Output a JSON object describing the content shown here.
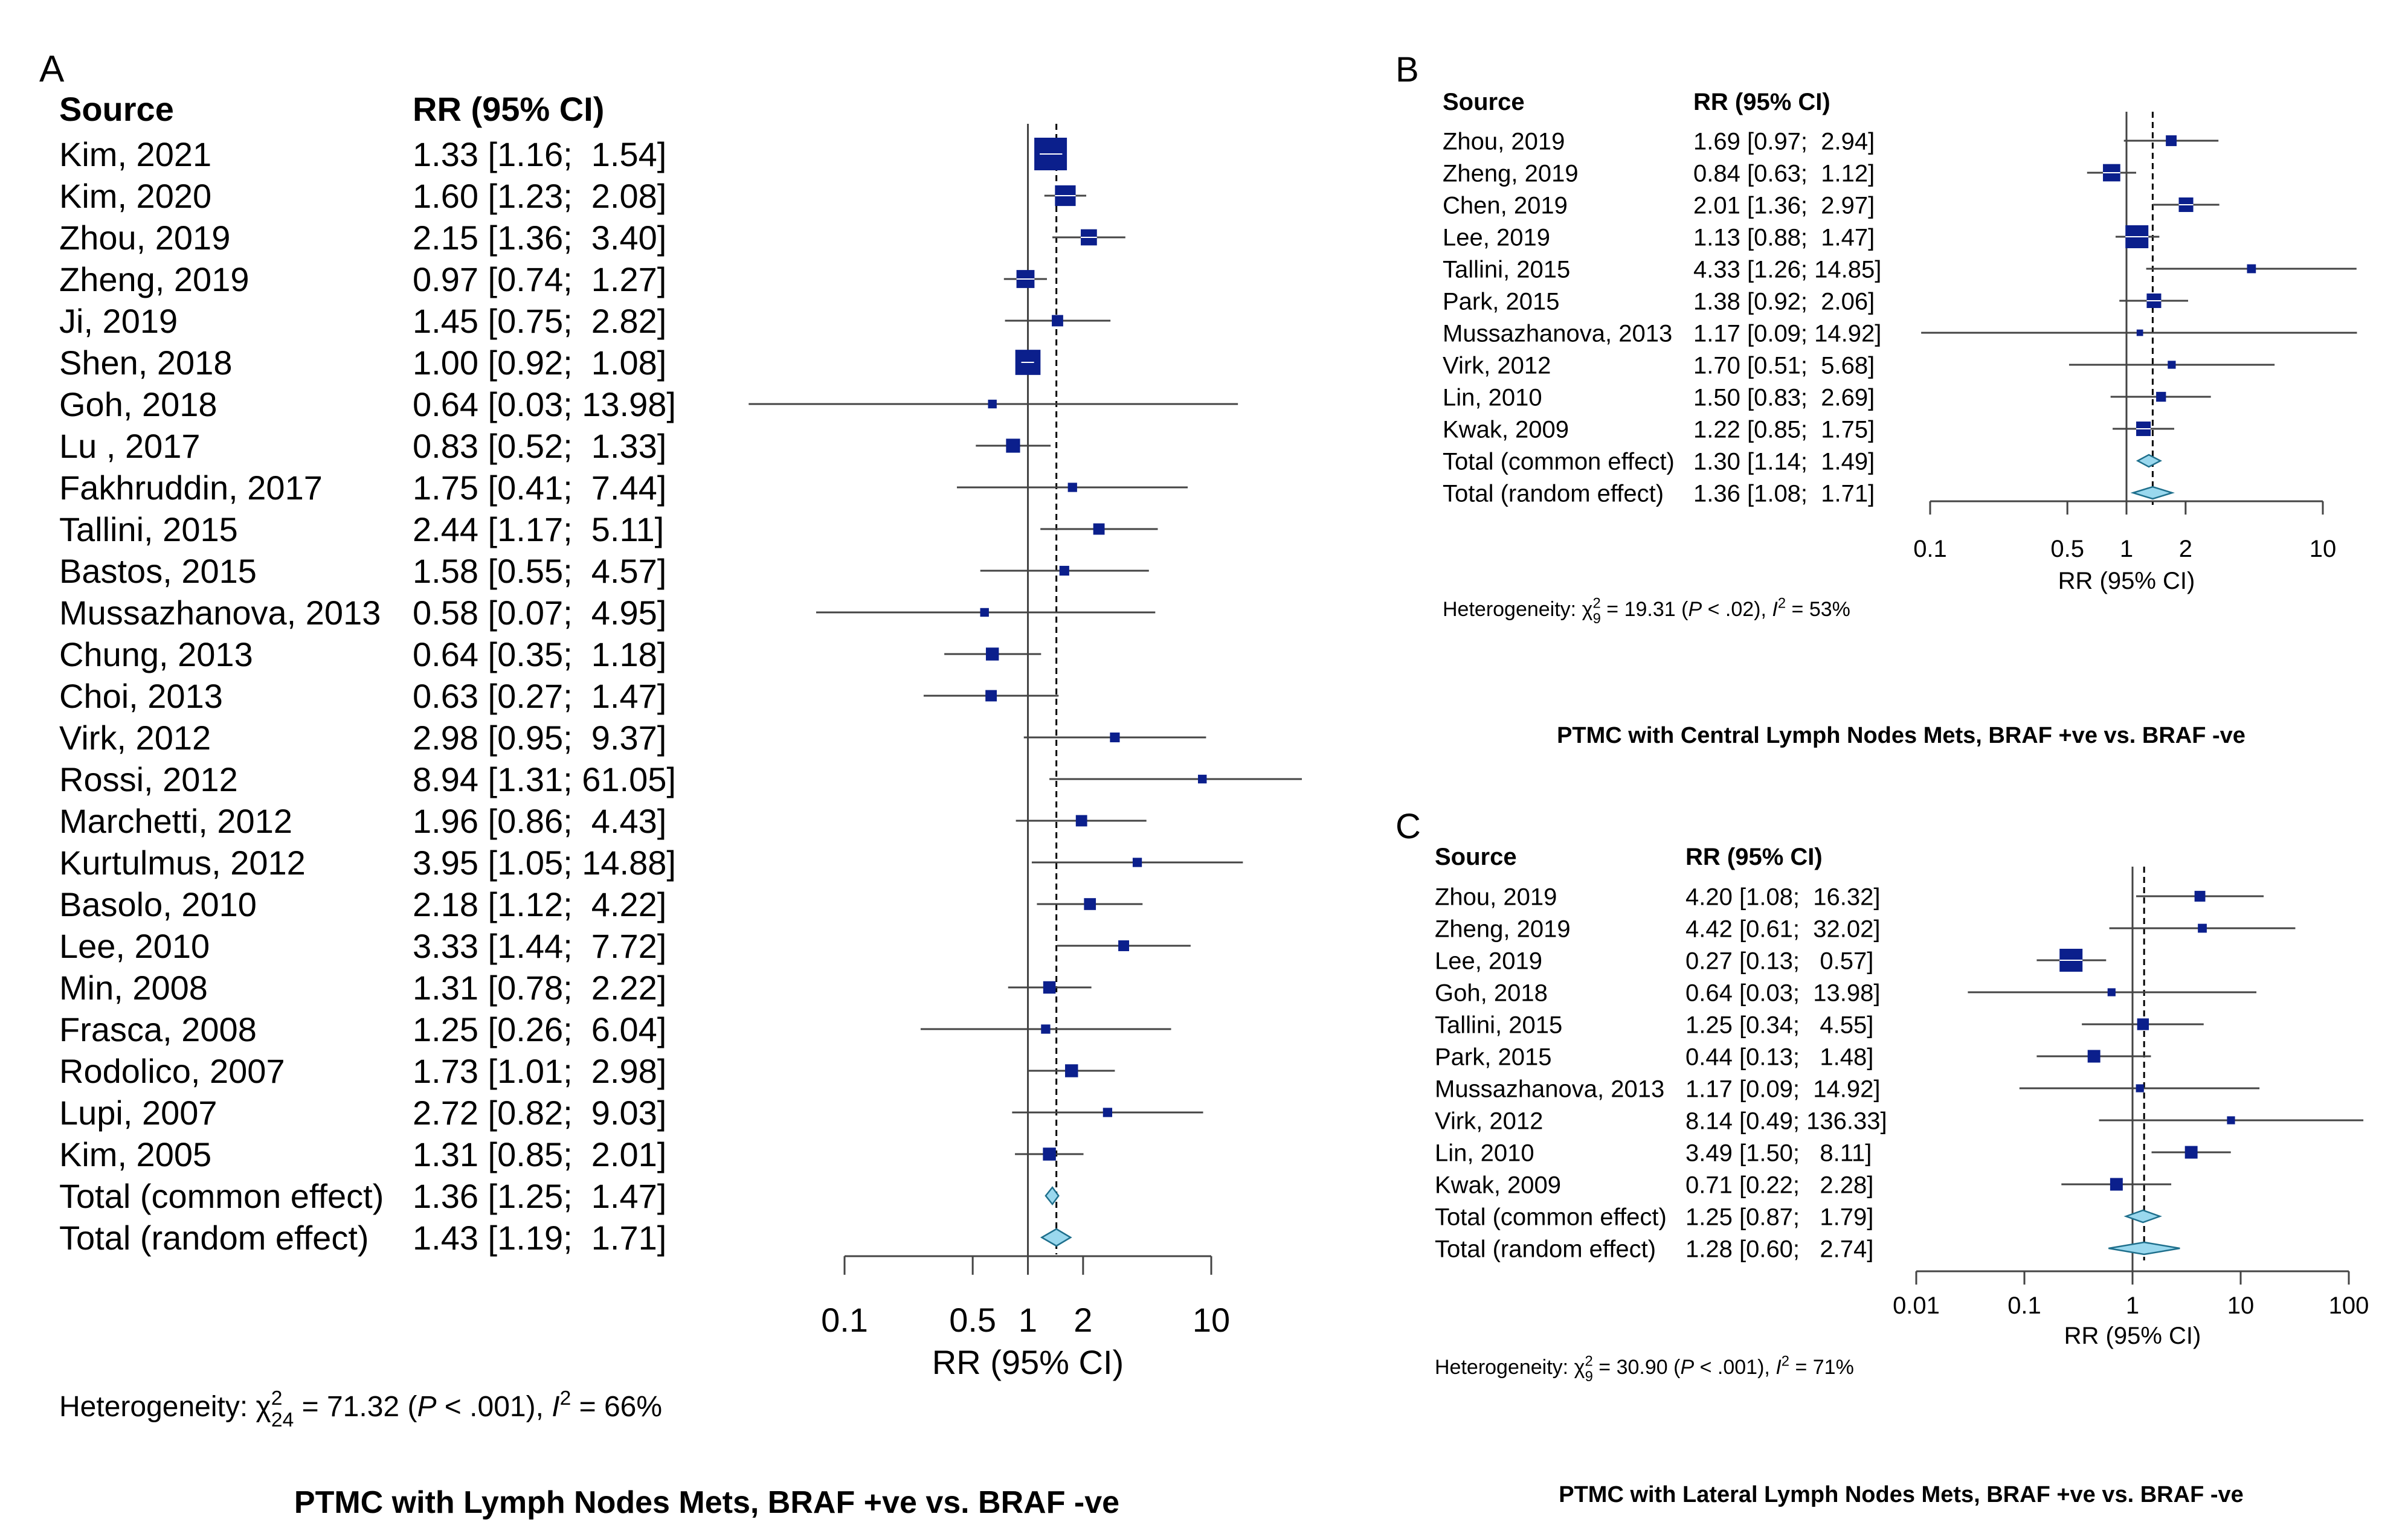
{
  "colors": {
    "square": "#0b1f8c",
    "diamond_fill": "#9ad8ee",
    "diamond_stroke": "#1e6f8c",
    "ci_line": "#444444",
    "axis": "#444444"
  },
  "chart_data": [
    {
      "type": "forest",
      "panel_label": "A",
      "col_source": "Source",
      "col_estimate": "RR (95% CI)",
      "xlabel": "RR (95% CI)",
      "scale": "log",
      "ticks": [
        {
          "v": 0.1,
          "label": "0.1"
        },
        {
          "v": 0.5,
          "label": "0.5"
        },
        {
          "v": 1,
          "label": "1"
        },
        {
          "v": 2,
          "label": "2"
        },
        {
          "v": 10,
          "label": "10"
        }
      ],
      "studies": [
        {
          "source": "Kim, 2021",
          "ci_text": "1.33 [1.16;  1.54]",
          "rr": 1.33,
          "lo": 1.16,
          "hi": 1.54,
          "weight": 1.0
        },
        {
          "source": "Kim, 2020",
          "ci_text": "1.60 [1.23;  2.08]",
          "rr": 1.6,
          "lo": 1.23,
          "hi": 2.08,
          "weight": 0.55
        },
        {
          "source": "Zhou, 2019",
          "ci_text": "2.15 [1.36;  3.40]",
          "rr": 2.15,
          "lo": 1.36,
          "hi": 3.4,
          "weight": 0.38
        },
        {
          "source": "Zheng, 2019",
          "ci_text": "0.97 [0.74;  1.27]",
          "rr": 0.97,
          "lo": 0.74,
          "hi": 1.27,
          "weight": 0.45
        },
        {
          "source": "Ji, 2019",
          "ci_text": "1.45 [0.75;  2.82]",
          "rr": 1.45,
          "lo": 0.75,
          "hi": 2.82,
          "weight": 0.2
        },
        {
          "source": "Shen, 2018",
          "ci_text": "1.00 [0.92;  1.08]",
          "rr": 1.0,
          "lo": 0.92,
          "hi": 1.08,
          "weight": 0.72
        },
        {
          "source": "Goh, 2018",
          "ci_text": "0.64 [0.03; 13.98]",
          "rr": 0.64,
          "lo": 0.03,
          "hi": 13.98,
          "weight": 0.1
        },
        {
          "source": "Lu , 2017",
          "ci_text": "0.83 [0.52;  1.33]",
          "rr": 0.83,
          "lo": 0.52,
          "hi": 1.33,
          "weight": 0.3
        },
        {
          "source": "Fakhruddin, 2017",
          "ci_text": "1.75 [0.41;  7.44]",
          "rr": 1.75,
          "lo": 0.41,
          "hi": 7.44,
          "weight": 0.12
        },
        {
          "source": "Tallini, 2015",
          "ci_text": "2.44 [1.17;  5.11]",
          "rr": 2.44,
          "lo": 1.17,
          "hi": 5.11,
          "weight": 0.2
        },
        {
          "source": "Bastos, 2015",
          "ci_text": "1.58 [0.55;  4.57]",
          "rr": 1.58,
          "lo": 0.55,
          "hi": 4.57,
          "weight": 0.14
        },
        {
          "source": "Mussazhanova, 2013",
          "ci_text": "0.58 [0.07;  4.95]",
          "rr": 0.58,
          "lo": 0.07,
          "hi": 4.95,
          "weight": 0.1
        },
        {
          "source": "Chung, 2013",
          "ci_text": "0.64 [0.35;  1.18]",
          "rr": 0.64,
          "lo": 0.35,
          "hi": 1.18,
          "weight": 0.26
        },
        {
          "source": "Choi, 2013",
          "ci_text": "0.63 [0.27;  1.47]",
          "rr": 0.63,
          "lo": 0.27,
          "hi": 1.47,
          "weight": 0.2
        },
        {
          "source": "Virk, 2012",
          "ci_text": "2.98 [0.95;  9.37]",
          "rr": 2.98,
          "lo": 0.95,
          "hi": 9.37,
          "weight": 0.14
        },
        {
          "source": "Rossi, 2012",
          "ci_text": "8.94 [1.31; 61.05]",
          "rr": 8.94,
          "lo": 1.31,
          "hi": 61.05,
          "weight": 0.1
        },
        {
          "source": "Marchetti, 2012",
          "ci_text": "1.96 [0.86;  4.43]",
          "rr": 1.96,
          "lo": 0.86,
          "hi": 4.43,
          "weight": 0.2
        },
        {
          "source": "Kurtulmus, 2012",
          "ci_text": "3.95 [1.05; 14.88]",
          "rr": 3.95,
          "lo": 1.05,
          "hi": 14.88,
          "weight": 0.12
        },
        {
          "source": "Basolo, 2010",
          "ci_text": "2.18 [1.12;  4.22]",
          "rr": 2.18,
          "lo": 1.12,
          "hi": 4.22,
          "weight": 0.22
        },
        {
          "source": "Lee, 2010",
          "ci_text": "3.33 [1.44;  7.72]",
          "rr": 3.33,
          "lo": 1.44,
          "hi": 7.72,
          "weight": 0.18
        },
        {
          "source": "Min, 2008",
          "ci_text": "1.31 [0.78;  2.22]",
          "rr": 1.31,
          "lo": 0.78,
          "hi": 2.22,
          "weight": 0.24
        },
        {
          "source": "Frasca, 2008",
          "ci_text": "1.25 [0.26;  6.04]",
          "rr": 1.25,
          "lo": 0.26,
          "hi": 6.04,
          "weight": 0.12
        },
        {
          "source": "Rodolico, 2007",
          "ci_text": "1.73 [1.01;  2.98]",
          "rr": 1.73,
          "lo": 1.01,
          "hi": 2.98,
          "weight": 0.26
        },
        {
          "source": "Lupi, 2007",
          "ci_text": "2.72 [0.82;  9.03]",
          "rr": 2.72,
          "lo": 0.82,
          "hi": 9.03,
          "weight": 0.12
        },
        {
          "source": "Kim, 2005",
          "ci_text": "1.31 [0.85;  2.01]",
          "rr": 1.31,
          "lo": 0.85,
          "hi": 2.01,
          "weight": 0.26
        }
      ],
      "totals": [
        {
          "source": "Total (common effect)",
          "ci_text": "1.36 [1.25;  1.47]",
          "rr": 1.36,
          "lo": 1.25,
          "hi": 1.47
        },
        {
          "source": "Total (random effect)",
          "ci_text": "1.43 [1.19;  1.71]",
          "rr": 1.43,
          "lo": 1.19,
          "hi": 1.71
        }
      ],
      "heterogeneity": {
        "chi_sub": "24",
        "chi_value": "71.32",
        "p_value": ".001",
        "i2": "66%"
      },
      "caption": "PTMC with Lymph Nodes Mets, BRAF +ve vs. BRAF -ve"
    },
    {
      "type": "forest",
      "panel_label": "B",
      "col_source": "Source",
      "col_estimate": "RR (95% CI)",
      "xlabel": "RR (95% CI)",
      "scale": "log",
      "ticks": [
        {
          "v": 0.1,
          "label": "0.1"
        },
        {
          "v": 0.5,
          "label": "0.5"
        },
        {
          "v": 1,
          "label": "1"
        },
        {
          "v": 2,
          "label": "2"
        },
        {
          "v": 10,
          "label": "10"
        }
      ],
      "studies": [
        {
          "source": "Zhou, 2019",
          "ci_text": "1.69 [0.97;  2.94]",
          "rr": 1.69,
          "lo": 0.97,
          "hi": 2.94,
          "weight": 0.35
        },
        {
          "source": "Zheng, 2019",
          "ci_text": "0.84 [0.63;  1.12]",
          "rr": 0.84,
          "lo": 0.63,
          "hi": 1.12,
          "weight": 0.7
        },
        {
          "source": "Chen, 2019",
          "ci_text": "2.01 [1.36;  2.97]",
          "rr": 2.01,
          "lo": 1.36,
          "hi": 2.97,
          "weight": 0.55
        },
        {
          "source": "Lee, 2019",
          "ci_text": "1.13 [0.88;  1.47]",
          "rr": 1.13,
          "lo": 0.88,
          "hi": 1.47,
          "weight": 1.0
        },
        {
          "source": "Tallini, 2015",
          "ci_text": "4.33 [1.26; 14.85]",
          "rr": 4.33,
          "lo": 1.26,
          "hi": 14.85,
          "weight": 0.25
        },
        {
          "source": "Park, 2015",
          "ci_text": "1.38 [0.92;  2.06]",
          "rr": 1.38,
          "lo": 0.92,
          "hi": 2.06,
          "weight": 0.55
        },
        {
          "source": "Mussazhanova, 2013",
          "ci_text": "1.17 [0.09; 14.92]",
          "rr": 1.17,
          "lo": 0.09,
          "hi": 14.92,
          "weight": 0.12
        },
        {
          "source": "Virk, 2012",
          "ci_text": "1.70 [0.51;  5.68]",
          "rr": 1.7,
          "lo": 0.51,
          "hi": 5.68,
          "weight": 0.2
        },
        {
          "source": "Lin, 2010",
          "ci_text": "1.50 [0.83;  2.69]",
          "rr": 1.5,
          "lo": 0.83,
          "hi": 2.69,
          "weight": 0.3
        },
        {
          "source": "Kwak, 2009",
          "ci_text": "1.22 [0.85;  1.75]",
          "rr": 1.22,
          "lo": 0.85,
          "hi": 1.75,
          "weight": 0.55
        }
      ],
      "totals": [
        {
          "source": "Total (common effect)",
          "ci_text": "1.30 [1.14;  1.49]",
          "rr": 1.3,
          "lo": 1.14,
          "hi": 1.49
        },
        {
          "source": "Total (random effect)",
          "ci_text": "1.36 [1.08;  1.71]",
          "rr": 1.36,
          "lo": 1.08,
          "hi": 1.71
        }
      ],
      "heterogeneity": {
        "chi_sub": "9",
        "chi_value": "19.31",
        "p_value": ".02",
        "i2": "53%"
      },
      "caption": "PTMC with Central Lymph Nodes Mets, BRAF +ve vs. BRAF -ve"
    },
    {
      "type": "forest",
      "panel_label": "C",
      "col_source": "Source",
      "col_estimate": "RR (95% CI)",
      "xlabel": "RR (95% CI)",
      "scale": "log",
      "ticks": [
        {
          "v": 0.01,
          "label": "0.01"
        },
        {
          "v": 0.1,
          "label": "0.1"
        },
        {
          "v": 1,
          "label": "1"
        },
        {
          "v": 10,
          "label": "10"
        },
        {
          "v": 100,
          "label": "100"
        }
      ],
      "studies": [
        {
          "source": "Zhou, 2019",
          "ci_text": "4.20 [1.08;  16.32]",
          "rr": 4.2,
          "lo": 1.08,
          "hi": 16.32,
          "weight": 0.35
        },
        {
          "source": "Zheng, 2019",
          "ci_text": "4.42 [0.61;  32.02]",
          "rr": 4.42,
          "lo": 0.61,
          "hi": 32.02,
          "weight": 0.25
        },
        {
          "source": "Lee, 2019",
          "ci_text": "0.27 [0.13;   0.57]",
          "rr": 0.27,
          "lo": 0.13,
          "hi": 0.57,
          "weight": 1.0
        },
        {
          "source": "Goh, 2018",
          "ci_text": "0.64 [0.03;  13.98]",
          "rr": 0.64,
          "lo": 0.03,
          "hi": 13.98,
          "weight": 0.2
        },
        {
          "source": "Tallini, 2015",
          "ci_text": "1.25 [0.34;   4.55]",
          "rr": 1.25,
          "lo": 0.34,
          "hi": 4.55,
          "weight": 0.4
        },
        {
          "source": "Park, 2015",
          "ci_text": "0.44 [0.13;   1.48]",
          "rr": 0.44,
          "lo": 0.13,
          "hi": 1.48,
          "weight": 0.45
        },
        {
          "source": "Mussazhanova, 2013",
          "ci_text": "1.17 [0.09;  14.92]",
          "rr": 1.17,
          "lo": 0.09,
          "hi": 14.92,
          "weight": 0.2
        },
        {
          "source": "Virk, 2012",
          "ci_text": "8.14 [0.49; 136.33]",
          "rr": 8.14,
          "lo": 0.49,
          "hi": 136.33,
          "weight": 0.2
        },
        {
          "source": "Lin, 2010",
          "ci_text": "3.49 [1.50;   8.11]",
          "rr": 3.49,
          "lo": 1.5,
          "hi": 8.11,
          "weight": 0.45
        },
        {
          "source": "Kwak, 2009",
          "ci_text": "0.71 [0.22;   2.28]",
          "rr": 0.71,
          "lo": 0.22,
          "hi": 2.28,
          "weight": 0.45
        }
      ],
      "totals": [
        {
          "source": "Total (common effect)",
          "ci_text": "1.25 [0.87;   1.79]",
          "rr": 1.25,
          "lo": 0.87,
          "hi": 1.79
        },
        {
          "source": "Total (random effect)",
          "ci_text": "1.28 [0.60;   2.74]",
          "rr": 1.28,
          "lo": 0.6,
          "hi": 2.74
        }
      ],
      "heterogeneity": {
        "chi_sub": "9",
        "chi_value": "30.90",
        "p_value": ".001",
        "i2": "71%"
      },
      "caption": "PTMC with Lateral Lymph Nodes Mets, BRAF +ve vs. BRAF -ve"
    }
  ]
}
